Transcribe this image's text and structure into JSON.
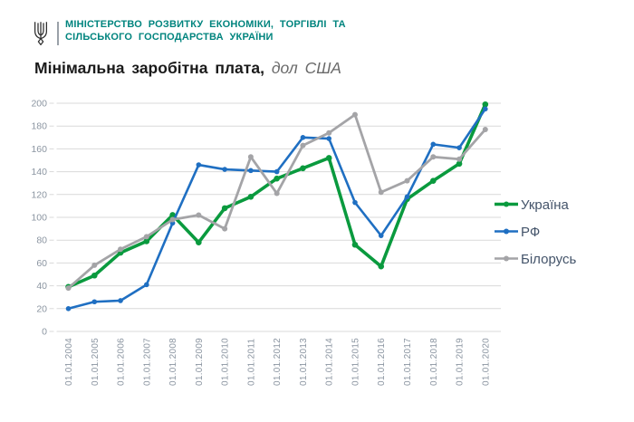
{
  "header": {
    "ministry_line1": "МІНІСТЕРСТВО РОЗВИТКУ ЕКОНОМІКИ, ТОРГІВЛІ ТА",
    "ministry_line2": "СІЛЬСЬКОГО ГОСПОДАРСТВА УКРАЇНИ"
  },
  "title": {
    "main": "Мінімальна заробітна плата,",
    "unit": "дол США"
  },
  "colors": {
    "teal": "#00847e",
    "ukraine": "#0a9a3e",
    "rf": "#1f6fc2",
    "belarus": "#a4a4a7",
    "grid": "#d9d9d9",
    "axis_text": "#8b95a1",
    "legend_text": "#44546a"
  },
  "chart_data": {
    "type": "line",
    "title": "Мінімальна заробітна плата, дол США",
    "categories": [
      "01.01.2004",
      "01.01.2005",
      "01.01.2006",
      "01.01.2007",
      "01.01.2008",
      "01.01.2009",
      "01.01.2010",
      "01.01.2011",
      "01.01.2012",
      "01.01.2013",
      "01.01.2014",
      "01.01.2015",
      "01.01.2016",
      "01.01.2017",
      "01.01.2018",
      "01.01.2019",
      "01.01.2020"
    ],
    "series": [
      {
        "name": "Україна",
        "color_key": "ukraine",
        "values": [
          39,
          49,
          69,
          79,
          102,
          78,
          108,
          118,
          134,
          143,
          152,
          76,
          57,
          116,
          132,
          147,
          199
        ]
      },
      {
        "name": "РФ",
        "color_key": "rf",
        "values": [
          20,
          26,
          27,
          41,
          95,
          146,
          142,
          141,
          140,
          170,
          169,
          113,
          84,
          118,
          164,
          161,
          195
        ]
      },
      {
        "name": "Білорусь",
        "color_key": "belarus",
        "values": [
          38,
          58,
          72,
          83,
          98,
          102,
          90,
          153,
          121,
          163,
          174,
          190,
          122,
          132,
          153,
          151,
          177
        ]
      }
    ],
    "ylim": [
      0,
      200
    ],
    "yticks": [
      0,
      20,
      40,
      60,
      80,
      100,
      120,
      140,
      160,
      180,
      200
    ],
    "grid": true,
    "legend_position": "right"
  }
}
